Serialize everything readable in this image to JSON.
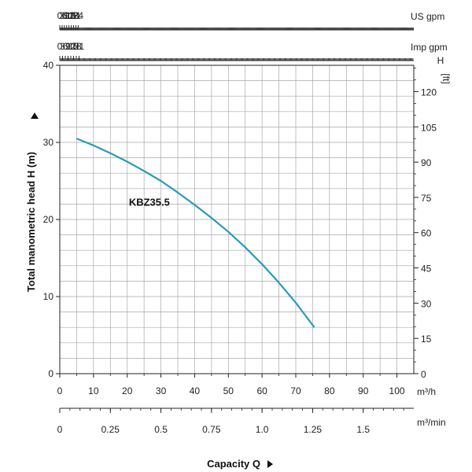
{
  "chart_data": {
    "type": "line",
    "title": "",
    "series": [
      {
        "name": "KBZ35.5",
        "x": [
          5,
          10,
          15,
          20,
          25,
          30,
          35,
          40,
          45,
          50,
          55,
          60,
          65,
          70,
          75.5
        ],
        "y": [
          30.5,
          29.6,
          28.6,
          27.5,
          26.3,
          25.0,
          23.5,
          21.9,
          20.2,
          18.4,
          16.4,
          14.2,
          11.8,
          9.2,
          6.0
        ],
        "color": "#2a9bb8"
      }
    ],
    "y_left": {
      "label": "Total manometric head H (m)",
      "ticks": [
        "0",
        "10",
        "20",
        "30",
        "40"
      ],
      "range": [
        0,
        40
      ]
    },
    "y_right": {
      "label_line1": "H",
      "label_line2": "[ft]",
      "ticks": [
        "0",
        "15",
        "30",
        "45",
        "60",
        "75",
        "90",
        "105",
        "120"
      ],
      "range_ft": [
        0,
        131.2
      ]
    },
    "x_m3h": {
      "unit": "m³/h",
      "ticks": [
        "0",
        "10",
        "20",
        "30",
        "40",
        "50",
        "60",
        "70",
        "80",
        "90",
        "100"
      ],
      "range": [
        0,
        105
      ]
    },
    "x_m3min": {
      "unit": "m³/min",
      "ticks": [
        "0",
        "0.25",
        "0.5",
        "0.75",
        "1.0",
        "1.25",
        "1.5"
      ]
    },
    "x_usgpm": {
      "unit": "US gpm",
      "ticks": [
        "0",
        "3",
        "6",
        "9",
        "12",
        "15",
        "18",
        "21",
        "24"
      ]
    },
    "x_impgpm": {
      "unit": "Imp gpm",
      "ticks": [
        "0",
        "3",
        "6",
        "9",
        "12",
        "15",
        "18",
        "21"
      ]
    },
    "xlabel": "Capacity Q",
    "grid": true
  }
}
